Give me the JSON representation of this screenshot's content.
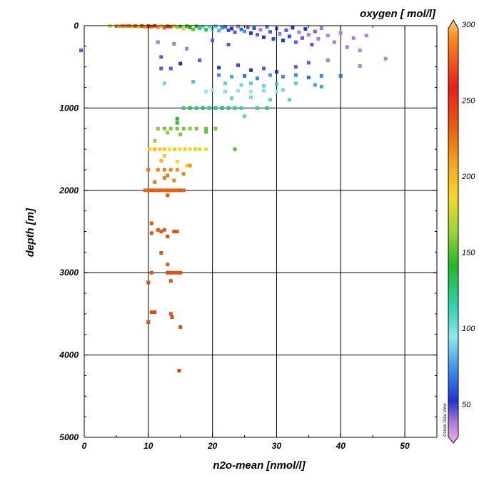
{
  "chart_data": {
    "type": "scatter",
    "title": "oxygen [ mol/l]",
    "xlabel": "n2o-mean [nmol/l]",
    "ylabel": "depth [m]",
    "xlim": [
      0,
      55
    ],
    "ylim": [
      5000,
      0
    ],
    "y_inverted": true,
    "xticks": [
      "0",
      "10",
      "20",
      "30",
      "40",
      "50"
    ],
    "yticks": [
      "0",
      "1000",
      "2000",
      "3000",
      "4000",
      "5000"
    ],
    "grid": true,
    "colorbar": {
      "label": "oxygen [ mol/l]",
      "min": 25,
      "max": 300,
      "ticks": [
        "300",
        "250",
        "200",
        "150",
        "100",
        "50"
      ],
      "credit": "Ocean Data View"
    },
    "points": [
      [
        -0.5,
        300,
        60
      ],
      [
        4,
        2,
        200
      ],
      [
        5,
        4,
        205
      ],
      [
        5.5,
        8,
        210
      ],
      [
        6,
        3,
        220
      ],
      [
        6.5,
        6,
        215
      ],
      [
        7,
        2,
        225
      ],
      [
        7.5,
        9,
        210
      ],
      [
        8,
        4,
        230
      ],
      [
        8.5,
        12,
        205
      ],
      [
        9,
        3,
        240
      ],
      [
        9.5,
        15,
        215
      ],
      [
        10,
        5,
        250
      ],
      [
        10.5,
        10,
        235
      ],
      [
        11,
        2,
        245
      ],
      [
        11.5,
        18,
        220
      ],
      [
        12,
        6,
        200
      ],
      [
        12.5,
        25,
        230
      ],
      [
        13,
        8,
        255
      ],
      [
        13.5,
        12,
        240
      ],
      [
        14,
        4,
        190
      ],
      [
        14.5,
        20,
        170
      ],
      [
        15,
        10,
        160
      ],
      [
        15.5,
        35,
        180
      ],
      [
        16,
        6,
        150
      ],
      [
        16.5,
        22,
        140
      ],
      [
        17,
        45,
        155
      ],
      [
        17.5,
        8,
        145
      ],
      [
        18,
        30,
        130
      ],
      [
        18.5,
        12,
        120
      ],
      [
        19,
        50,
        135
      ],
      [
        19.5,
        18,
        115
      ],
      [
        20,
        40,
        100
      ],
      [
        20.5,
        8,
        95
      ],
      [
        21,
        60,
        90
      ],
      [
        21.5,
        25,
        80
      ],
      [
        22,
        15,
        75
      ],
      [
        22.5,
        55,
        70
      ],
      [
        23,
        35,
        65
      ],
      [
        23.5,
        80,
        60
      ],
      [
        24,
        10,
        55
      ],
      [
        24.5,
        45,
        75
      ],
      [
        25,
        70,
        85
      ],
      [
        25.5,
        20,
        60
      ],
      [
        26,
        90,
        65
      ],
      [
        26.5,
        30,
        70
      ],
      [
        27,
        110,
        60
      ],
      [
        27.5,
        50,
        55
      ],
      [
        28,
        140,
        65
      ],
      [
        28.5,
        15,
        60
      ],
      [
        29,
        75,
        75
      ],
      [
        29.5,
        160,
        70
      ],
      [
        30,
        35,
        60
      ],
      [
        30.5,
        100,
        55
      ],
      [
        31,
        180,
        65
      ],
      [
        31.5,
        55,
        60
      ],
      [
        32,
        130,
        70
      ],
      [
        32.5,
        25,
        65
      ],
      [
        33,
        200,
        60
      ],
      [
        33.5,
        80,
        55
      ],
      [
        34,
        150,
        60
      ],
      [
        34.5,
        40,
        65
      ],
      [
        35,
        110,
        55
      ],
      [
        35.5,
        230,
        60
      ],
      [
        36,
        70,
        58
      ],
      [
        36.5,
        160,
        52
      ],
      [
        37,
        30,
        55
      ],
      [
        38,
        120,
        50
      ],
      [
        39,
        200,
        52
      ],
      [
        40,
        90,
        48
      ],
      [
        41,
        260,
        55
      ],
      [
        42,
        150,
        50
      ],
      [
        43,
        300,
        45
      ],
      [
        44,
        120,
        48
      ],
      [
        47,
        400,
        45
      ],
      [
        11.5,
        200,
        55
      ],
      [
        14,
        220,
        55
      ],
      [
        16,
        280,
        55
      ],
      [
        20,
        180,
        60
      ],
      [
        22.5,
        230,
        60
      ],
      [
        12,
        380,
        60
      ],
      [
        15,
        460,
        65
      ],
      [
        18,
        420,
        60
      ],
      [
        21,
        510,
        65
      ],
      [
        24,
        480,
        70
      ],
      [
        26,
        540,
        65
      ],
      [
        28,
        520,
        60
      ],
      [
        30,
        560,
        65
      ],
      [
        33,
        500,
        60
      ],
      [
        35,
        450,
        60
      ],
      [
        38,
        420,
        55
      ],
      [
        43,
        490,
        50
      ],
      [
        12,
        520,
        60
      ],
      [
        13.5,
        520,
        60
      ],
      [
        21,
        600,
        80
      ],
      [
        23,
        620,
        85
      ],
      [
        25,
        610,
        75
      ],
      [
        27,
        640,
        80
      ],
      [
        29,
        600,
        85
      ],
      [
        31,
        620,
        80
      ],
      [
        33,
        600,
        80
      ],
      [
        35,
        630,
        75
      ],
      [
        37,
        610,
        80
      ],
      [
        40,
        610,
        75
      ],
      [
        12.5,
        700,
        100
      ],
      [
        17,
        680,
        90
      ],
      [
        22,
        700,
        95
      ],
      [
        24.5,
        720,
        100
      ],
      [
        26,
        700,
        95
      ],
      [
        28,
        730,
        100
      ],
      [
        30,
        710,
        90
      ],
      [
        33,
        700,
        95
      ],
      [
        36,
        720,
        85
      ],
      [
        37,
        740,
        85
      ],
      [
        20,
        780,
        110
      ],
      [
        22,
        800,
        105
      ],
      [
        24,
        790,
        110
      ],
      [
        26,
        800,
        110
      ],
      [
        28,
        790,
        105
      ],
      [
        30,
        800,
        110
      ],
      [
        31,
        780,
        100
      ],
      [
        19,
        800,
        110
      ],
      [
        26,
        870,
        115
      ],
      [
        29,
        900,
        120
      ],
      [
        32,
        900,
        120
      ],
      [
        23,
        880,
        118
      ],
      [
        15.5,
        1000,
        130
      ],
      [
        16.5,
        1000,
        135
      ],
      [
        17.5,
        1000,
        130
      ],
      [
        18.5,
        1000,
        132
      ],
      [
        19.5,
        1000,
        128
      ],
      [
        20.5,
        1000,
        130
      ],
      [
        21.5,
        1000,
        134
      ],
      [
        22.5,
        1000,
        130
      ],
      [
        23.5,
        1000,
        128
      ],
      [
        24.5,
        1000,
        125
      ],
      [
        27,
        1000,
        125
      ],
      [
        28.5,
        1000,
        130
      ],
      [
        25,
        1100,
        120
      ],
      [
        14.5,
        1130,
        140
      ],
      [
        14.5,
        1180,
        145
      ],
      [
        11.5,
        1250,
        165
      ],
      [
        12.5,
        1250,
        160
      ],
      [
        13.5,
        1250,
        162
      ],
      [
        14.5,
        1250,
        158
      ],
      [
        15.5,
        1250,
        160
      ],
      [
        16.5,
        1250,
        165
      ],
      [
        17.5,
        1250,
        160
      ],
      [
        19,
        1250,
        155
      ],
      [
        20.5,
        1250,
        160
      ],
      [
        13,
        1300,
        165
      ],
      [
        15,
        1320,
        160
      ],
      [
        19,
        1290,
        155
      ],
      [
        23.5,
        1500,
        150
      ],
      [
        11,
        1400,
        170
      ],
      [
        10.2,
        1500,
        200
      ],
      [
        11,
        1500,
        205
      ],
      [
        11.8,
        1500,
        198
      ],
      [
        12.5,
        1500,
        200
      ],
      [
        13.3,
        1500,
        195
      ],
      [
        14.1,
        1500,
        200
      ],
      [
        14.9,
        1500,
        195
      ],
      [
        15.7,
        1500,
        198
      ],
      [
        16.5,
        1500,
        195
      ],
      [
        17.3,
        1500,
        200
      ],
      [
        18,
        1500,
        198
      ],
      [
        19,
        1500,
        190
      ],
      [
        12.5,
        1580,
        200
      ],
      [
        12,
        1640,
        205
      ],
      [
        14.5,
        1650,
        195
      ],
      [
        16,
        1700,
        198
      ],
      [
        10,
        1750,
        225
      ],
      [
        11.5,
        1750,
        220
      ],
      [
        12.5,
        1750,
        222
      ],
      [
        13.5,
        1750,
        220
      ],
      [
        14.5,
        1750,
        218
      ],
      [
        15.5,
        1800,
        220
      ],
      [
        16.5,
        1700,
        215
      ],
      [
        13,
        1820,
        222
      ],
      [
        11,
        1900,
        225
      ],
      [
        12.5,
        1850,
        222
      ],
      [
        14,
        1880,
        220
      ],
      [
        9.5,
        2000,
        228
      ],
      [
        10,
        2000,
        230
      ],
      [
        10.5,
        2000,
        232
      ],
      [
        11,
        2000,
        230
      ],
      [
        11.5,
        2000,
        231
      ],
      [
        12,
        2000,
        230
      ],
      [
        12.5,
        2000,
        228
      ],
      [
        13,
        2000,
        232
      ],
      [
        13.5,
        2000,
        230
      ],
      [
        14,
        2000,
        228
      ],
      [
        14.5,
        2000,
        230
      ],
      [
        15,
        2000,
        232
      ],
      [
        15.5,
        2000,
        230
      ],
      [
        13,
        2060,
        232
      ],
      [
        10.5,
        2400,
        238
      ],
      [
        11.5,
        2480,
        238
      ],
      [
        12,
        2500,
        236
      ],
      [
        12.5,
        2480,
        238
      ],
      [
        14,
        2500,
        236
      ],
      [
        14.5,
        2500,
        234
      ],
      [
        10.5,
        2520,
        236
      ],
      [
        13,
        2560,
        238
      ],
      [
        12,
        2760,
        236
      ],
      [
        13,
        2900,
        236
      ],
      [
        10.5,
        3000,
        240
      ],
      [
        13,
        3000,
        242
      ],
      [
        13.5,
        3000,
        240
      ],
      [
        14,
        3000,
        238
      ],
      [
        14.5,
        3000,
        240
      ],
      [
        15,
        3000,
        238
      ],
      [
        13.5,
        3100,
        238
      ],
      [
        10,
        3120,
        240
      ],
      [
        10.5,
        3480,
        240
      ],
      [
        11,
        3480,
        242
      ],
      [
        13.5,
        3500,
        240
      ],
      [
        13.7,
        3540,
        242
      ],
      [
        10,
        3600,
        242
      ],
      [
        15,
        3660,
        244
      ],
      [
        14.8,
        4190,
        246
      ]
    ]
  }
}
